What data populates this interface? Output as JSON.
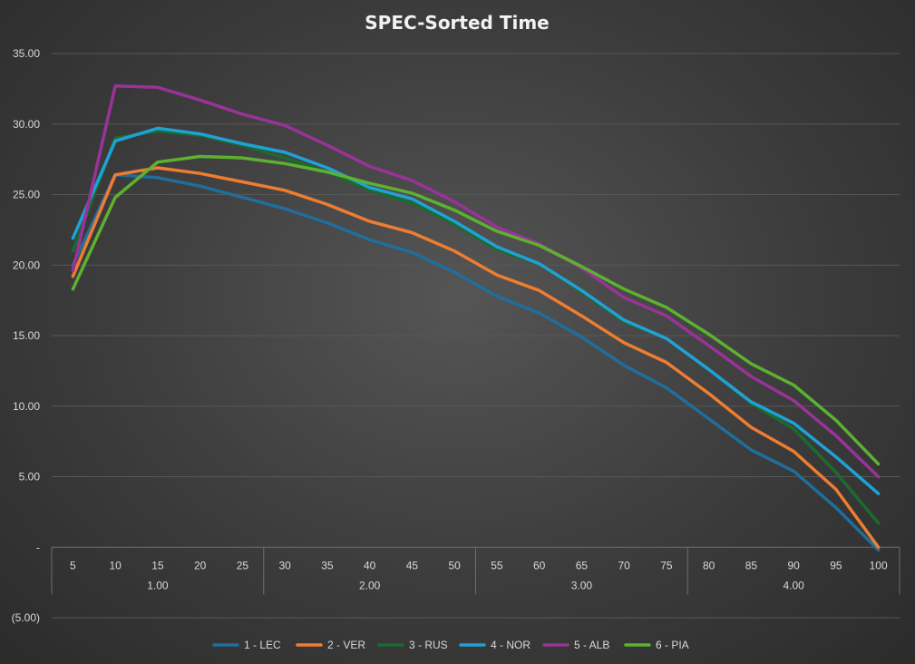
{
  "chart_data": {
    "type": "line",
    "title": "SPEC-Sorted Time",
    "xlabel": "",
    "ylabel": "",
    "ylim": [
      -5,
      35
    ],
    "yticks": [
      35,
      30,
      25,
      20,
      15,
      10,
      5,
      0,
      -5
    ],
    "ytick_labels": [
      "35.00",
      "30.00",
      "25.00",
      "20.00",
      "15.00",
      "10.00",
      "5.00",
      "-",
      "(5.00)"
    ],
    "categories": [
      "5",
      "10",
      "15",
      "20",
      "25",
      "30",
      "35",
      "40",
      "45",
      "50",
      "55",
      "60",
      "65",
      "70",
      "75",
      "80",
      "85",
      "90",
      "95",
      "100"
    ],
    "groups": [
      {
        "label": "1.00",
        "count": 5
      },
      {
        "label": "2.00",
        "count": 5
      },
      {
        "label": "3.00",
        "count": 5
      },
      {
        "label": "4.00",
        "count": 5
      }
    ],
    "grid": true,
    "legend_position": "bottom",
    "series": [
      {
        "name": "1 - LEC",
        "color": "#1f6e9c",
        "values": [
          20.0,
          26.4,
          26.2,
          25.6,
          24.8,
          24.0,
          23.0,
          21.8,
          20.9,
          19.5,
          17.8,
          16.6,
          14.9,
          12.9,
          11.3,
          9.1,
          6.9,
          5.4,
          2.8,
          -0.2
        ]
      },
      {
        "name": "2 - VER",
        "color": "#ee7d31",
        "values": [
          19.2,
          26.4,
          26.9,
          26.5,
          25.9,
          25.3,
          24.3,
          23.1,
          22.3,
          21.0,
          19.3,
          18.2,
          16.4,
          14.5,
          13.1,
          10.9,
          8.5,
          6.8,
          4.1,
          0.0
        ]
      },
      {
        "name": "3 - RUS",
        "color": "#1c6b2e",
        "values": [
          21.0,
          29.0,
          29.5,
          29.2,
          28.5,
          27.6,
          26.6,
          25.3,
          24.4,
          22.9,
          21.1,
          20.1,
          18.1,
          16.0,
          14.8,
          12.6,
          10.2,
          8.4,
          5.3,
          1.7
        ]
      },
      {
        "name": "4 - NOR",
        "color": "#20a1d6",
        "values": [
          21.9,
          28.8,
          29.7,
          29.3,
          28.6,
          28.0,
          26.9,
          25.5,
          24.7,
          23.1,
          21.3,
          20.1,
          18.2,
          16.1,
          14.8,
          12.6,
          10.3,
          8.8,
          6.4,
          3.8
        ]
      },
      {
        "name": "5 - ALB",
        "color": "#993399",
        "values": [
          19.6,
          32.7,
          32.6,
          31.7,
          30.7,
          29.9,
          28.5,
          27.0,
          26.0,
          24.5,
          22.7,
          21.5,
          19.8,
          17.7,
          16.4,
          14.3,
          12.1,
          10.4,
          7.9,
          5.0
        ]
      },
      {
        "name": "6 - PIA",
        "color": "#5db130",
        "values": [
          18.3,
          24.8,
          27.3,
          27.7,
          27.6,
          27.2,
          26.6,
          25.8,
          25.1,
          23.9,
          22.4,
          21.4,
          19.9,
          18.3,
          17.0,
          15.1,
          13.0,
          11.5,
          9.0,
          5.9
        ]
      }
    ]
  }
}
